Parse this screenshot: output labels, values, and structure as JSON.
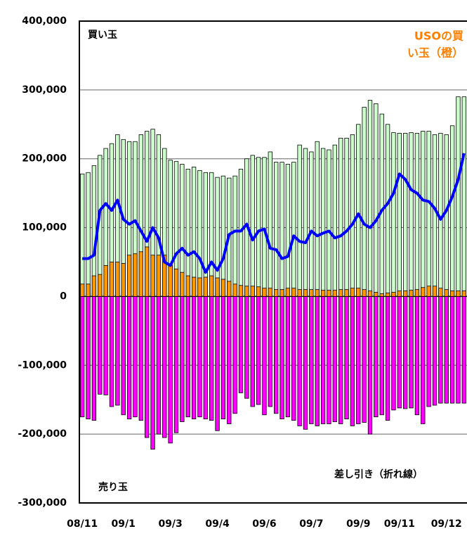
{
  "chart_data": {
    "type": "bar",
    "categories": [
      "08/11",
      null,
      null,
      null,
      null,
      null,
      null,
      "09/1",
      null,
      null,
      null,
      null,
      null,
      null,
      null,
      "09/3",
      null,
      null,
      null,
      null,
      null,
      null,
      null,
      "09/4",
      null,
      null,
      null,
      null,
      null,
      null,
      null,
      "09/6",
      null,
      null,
      null,
      null,
      null,
      null,
      null,
      "09/7",
      null,
      null,
      null,
      null,
      null,
      null,
      null,
      "09/9",
      null,
      null,
      null,
      null,
      null,
      null,
      "09/11",
      null,
      null,
      null,
      null,
      null,
      null,
      null,
      "09/12",
      null,
      null,
      null
    ],
    "series": [
      {
        "name": "買い玉",
        "color": "#ccffcc",
        "values": [
          178000,
          180000,
          190000,
          205000,
          215000,
          222000,
          235000,
          228000,
          225000,
          225000,
          235000,
          240000,
          243000,
          235000,
          215000,
          198000,
          196000,
          192000,
          185000,
          188000,
          183000,
          180000,
          180000,
          173000,
          175000,
          172000,
          175000,
          185000,
          200000,
          205000,
          202000,
          202000,
          210000,
          195000,
          195000,
          192000,
          195000,
          220000,
          215000,
          210000,
          225000,
          215000,
          213000,
          220000,
          230000,
          230000,
          235000,
          250000,
          275000,
          285000,
          280000,
          265000,
          250000,
          238000,
          237000,
          237000,
          238000,
          237000,
          240000,
          240000,
          235000,
          237000,
          235000,
          248000,
          290000,
          290000
        ]
      },
      {
        "name": "USOの買い玉（橙）",
        "color": "#ff9900",
        "values": [
          18000,
          18000,
          30000,
          32000,
          45000,
          50000,
          50000,
          48000,
          60000,
          62000,
          65000,
          72000,
          60000,
          60000,
          60000,
          45000,
          40000,
          35000,
          30000,
          28000,
          27000,
          28000,
          30000,
          27000,
          25000,
          22000,
          18000,
          16000,
          15000,
          15000,
          14000,
          12000,
          12000,
          10000,
          10000,
          12000,
          12000,
          10000,
          10000,
          10000,
          10000,
          9000,
          9000,
          9000,
          10000,
          10000,
          12000,
          12000,
          10000,
          8000,
          6000,
          4000,
          5000,
          6000,
          8000,
          8000,
          9000,
          10000,
          13000,
          15000,
          15000,
          12000,
          10000,
          8000,
          8000,
          8000
        ]
      },
      {
        "name": "売り玉",
        "color": "#ff00ff",
        "values": [
          -175000,
          -178000,
          -180000,
          -142000,
          -143000,
          -160000,
          -158000,
          -172000,
          -178000,
          -175000,
          -180000,
          -205000,
          -222000,
          -200000,
          -205000,
          -213000,
          -198000,
          -182000,
          -175000,
          -178000,
          -175000,
          -178000,
          -180000,
          -195000,
          -178000,
          -185000,
          -170000,
          -140000,
          -148000,
          -160000,
          -157000,
          -172000,
          -160000,
          -170000,
          -178000,
          -175000,
          -180000,
          -188000,
          -193000,
          -185000,
          -188000,
          -185000,
          -185000,
          -182000,
          -185000,
          -178000,
          -188000,
          -185000,
          -183000,
          -200000,
          -175000,
          -172000,
          -180000,
          -165000,
          -162000,
          -163000,
          -162000,
          -172000,
          -185000,
          -160000,
          -158000,
          -155000,
          -155000,
          -155000,
          -155000,
          -155000
        ]
      },
      {
        "name": "差し引き（折れ線）",
        "color": "#0000ff",
        "values": [
          55000,
          55000,
          60000,
          125000,
          135000,
          125000,
          140000,
          112000,
          105000,
          110000,
          95000,
          80000,
          100000,
          85000,
          50000,
          45000,
          62000,
          70000,
          60000,
          65000,
          55000,
          35000,
          50000,
          38000,
          55000,
          90000,
          95000,
          95000,
          105000,
          82000,
          95000,
          98000,
          70000,
          68000,
          55000,
          58000,
          88000,
          80000,
          78000,
          95000,
          88000,
          92000,
          95000,
          85000,
          88000,
          95000,
          105000,
          120000,
          105000,
          100000,
          110000,
          125000,
          135000,
          150000,
          178000,
          170000,
          155000,
          150000,
          140000,
          138000,
          128000,
          112000,
          125000,
          145000,
          170000,
          208000
        ]
      }
    ],
    "annotations": [
      "買い玉",
      "USOの買",
      "い玉（橙）",
      "売り玉",
      "差し引き（折れ線）"
    ],
    "ylim": [
      -300000,
      400000
    ],
    "yticks": [
      {
        "value": 400000,
        "label": "400,000"
      },
      {
        "value": 300000,
        "label": "300,000"
      },
      {
        "value": 200000,
        "label": "200,000"
      },
      {
        "value": 100000,
        "label": "100,000"
      },
      0,
      {
        "value": -100000,
        "label": "-100,000"
      },
      {
        "value": -200000,
        "label": "-200,000"
      },
      {
        "value": -300000,
        "label": "-300,000"
      }
    ],
    "grid": true
  }
}
